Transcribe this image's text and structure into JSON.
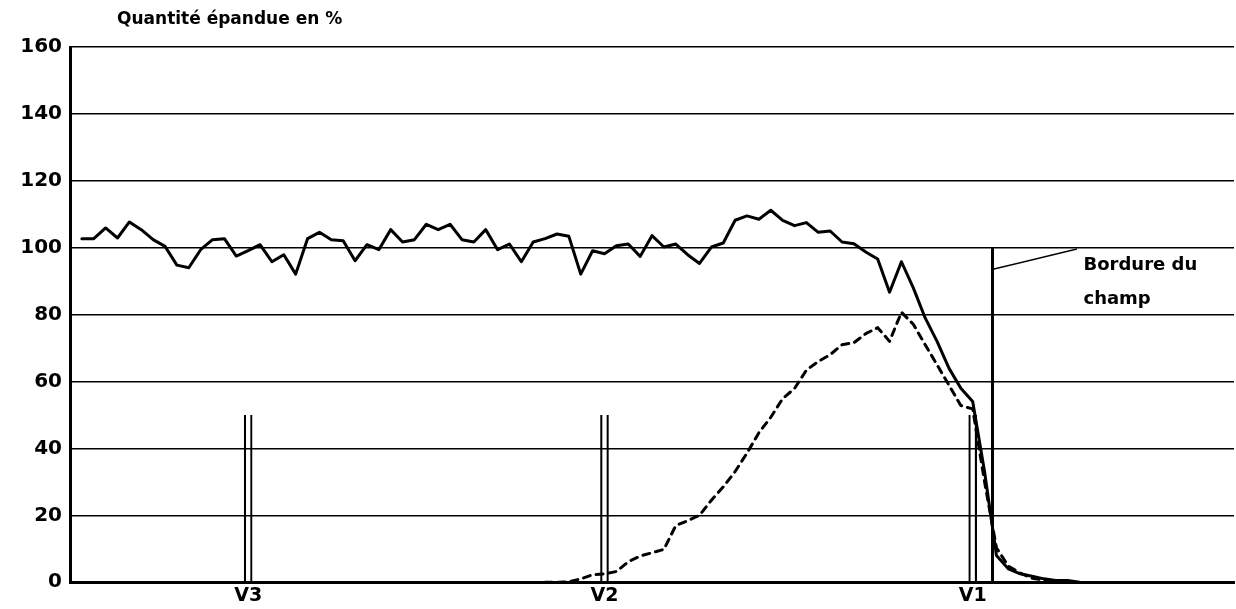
{
  "chart_data": {
    "type": "line",
    "ylabel": "Quantité épandue en %",
    "categories": [
      null,
      null,
      null,
      null,
      null,
      null,
      null,
      null,
      null,
      null,
      null,
      null,
      null,
      null,
      null,
      "V3",
      null,
      null,
      null,
      null,
      null,
      null,
      null,
      null,
      null,
      null,
      null,
      null,
      null,
      null,
      null,
      null,
      null,
      null,
      null,
      null,
      null,
      null,
      null,
      null,
      null,
      null,
      null,
      null,
      null,
      "V2",
      null,
      null,
      null,
      null,
      null,
      null,
      null,
      null,
      null,
      null,
      null,
      null,
      null,
      null,
      null,
      null,
      null,
      null,
      null,
      null,
      null,
      null,
      null,
      null,
      null,
      null,
      null,
      null,
      null,
      null,
      "V1",
      null,
      null,
      null,
      null,
      null,
      null,
      null,
      null,
      null,
      null,
      null,
      null,
      null,
      null,
      null,
      null,
      null,
      null,
      null,
      null,
      null,
      null
    ],
    "ylim": [
      0,
      160
    ],
    "yticks": [
      0,
      20,
      40,
      60,
      80,
      100,
      120,
      140,
      160
    ],
    "grid": "y",
    "marker": "none",
    "annotations": [
      "Bordure du champ"
    ],
    "series": [
      {
        "color": "#000000",
        "line_style": "solid",
        "values": [
          null,
          102.7,
          102.7,
          105.9,
          102.9,
          107.7,
          105.4,
          102.4,
          100.4,
          94.8,
          94.0,
          99.4,
          102.4,
          102.7,
          97.5,
          99.1,
          100.9,
          95.8,
          97.9,
          92.1,
          102.7,
          104.6,
          102.4,
          102.1,
          96.1,
          100.9,
          99.4,
          105.4,
          101.7,
          102.4,
          107.0,
          105.4,
          107.0,
          102.4,
          101.7,
          105.4,
          99.4,
          101.1,
          95.8,
          101.7,
          102.7,
          104.1,
          103.4,
          92.1,
          99.1,
          98.2,
          100.6,
          101.1,
          97.4,
          103.6,
          100.2,
          101.1,
          97.9,
          95.3,
          100.2,
          101.4,
          108.2,
          109.5,
          108.5,
          111.2,
          108.2,
          106.6,
          107.5,
          104.6,
          105.0,
          101.7,
          101.2,
          98.7,
          96.6,
          86.7,
          95.8,
          88,
          79,
          72,
          64,
          58,
          54,
          33,
          8,
          4,
          2.5,
          1.8,
          1,
          0.5,
          0.5,
          0,
          null,
          null,
          null,
          null,
          null,
          null,
          null,
          null,
          null,
          null,
          null,
          null,
          null
        ]
      },
      {
        "type": "bar",
        "color": "#000000",
        "values": [
          null,
          null,
          null,
          null,
          null,
          null,
          null,
          null,
          null,
          null,
          null,
          null,
          null,
          null,
          null,
          50,
          null,
          null,
          null,
          null,
          null,
          null,
          null,
          null,
          null,
          null,
          null,
          null,
          null,
          null,
          null,
          null,
          null,
          null,
          null,
          null,
          null,
          null,
          null,
          null,
          null,
          null,
          null,
          null,
          null,
          50,
          null,
          null,
          null,
          null,
          null,
          null,
          null,
          null,
          null,
          null,
          null,
          null,
          null,
          null,
          null,
          null,
          null,
          null,
          null,
          null,
          null,
          null,
          null,
          null,
          null,
          null,
          null,
          null,
          null,
          null,
          50,
          null,
          null,
          null,
          null,
          null,
          null,
          null,
          null,
          null,
          null,
          null,
          null,
          null,
          null,
          null,
          null,
          null,
          null,
          null,
          null,
          null,
          null
        ]
      },
      {
        "color": "#000000",
        "line_style": "dashed",
        "values": [
          null,
          null,
          null,
          null,
          null,
          null,
          null,
          null,
          null,
          null,
          null,
          null,
          null,
          null,
          null,
          null,
          null,
          null,
          null,
          null,
          null,
          null,
          null,
          null,
          null,
          null,
          null,
          null,
          null,
          null,
          null,
          null,
          null,
          null,
          null,
          null,
          null,
          null,
          null,
          null,
          0,
          0,
          0.1,
          1.0,
          2.2,
          2.5,
          3.2,
          6.1,
          7.8,
          8.8,
          9.8,
          16.9,
          18.4,
          20,
          24.5,
          28.5,
          33.1,
          38.6,
          44.7,
          49.3,
          54.9,
          57.9,
          63.4,
          66.0,
          68.0,
          71.0,
          71.6,
          74.3,
          76.1,
          72.0,
          80.7,
          77.1,
          71.0,
          65.0,
          58.9,
          52.8,
          51.8,
          30,
          10.3,
          4.8,
          2.7,
          1.2,
          0.6,
          0.2,
          0,
          null,
          null,
          null,
          null,
          null,
          null,
          null,
          null,
          null,
          null,
          null,
          null,
          null,
          null
        ]
      }
    ]
  }
}
